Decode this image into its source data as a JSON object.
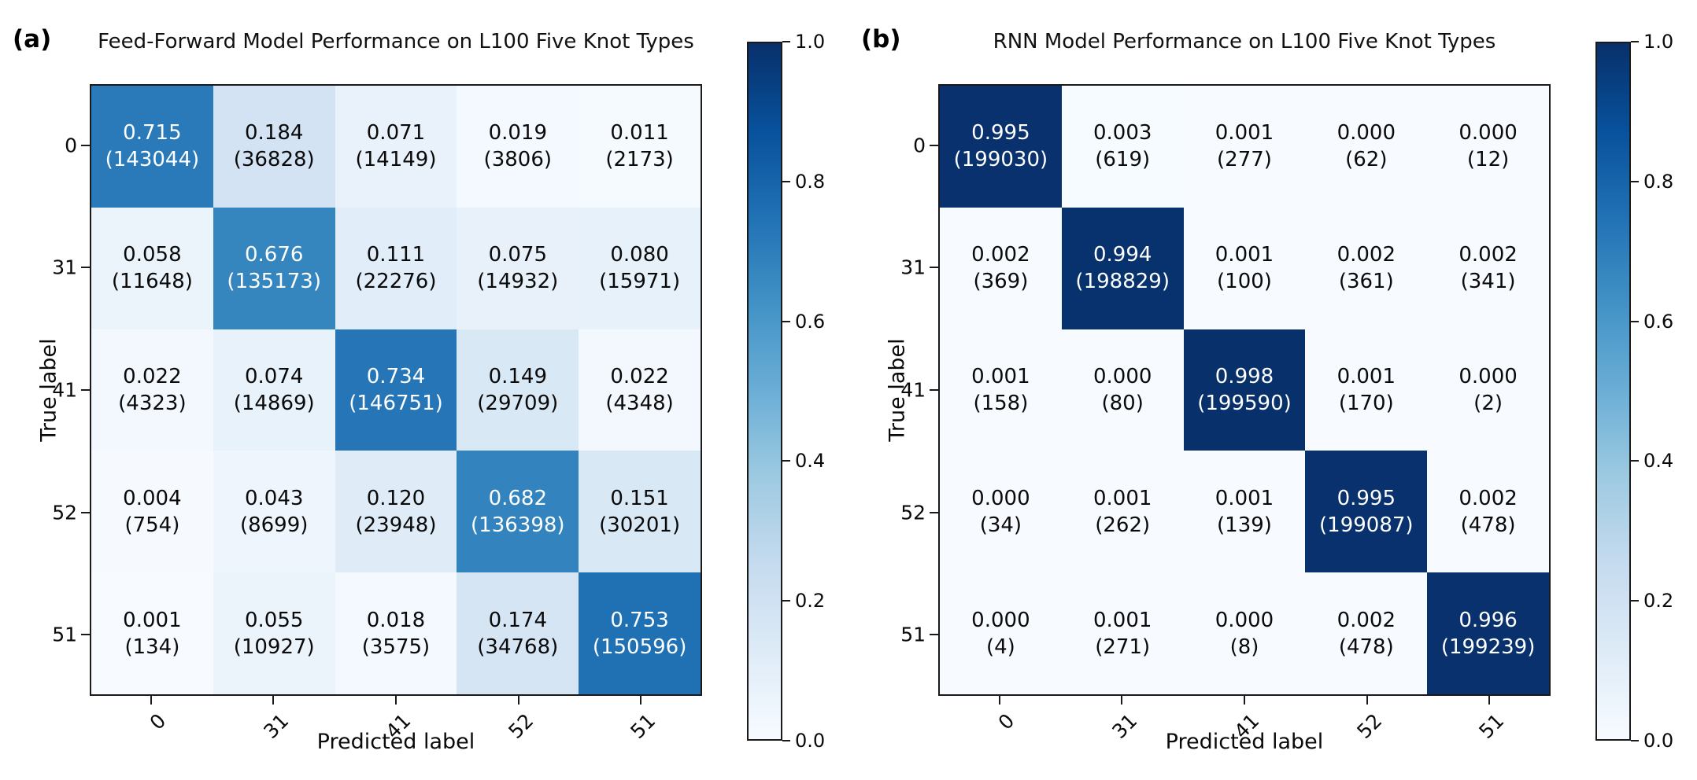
{
  "page": {
    "background": "#ffffff"
  },
  "colors": {
    "colormap_name": "Blues",
    "colormap_stops": [
      "#f7fbff",
      "#deebf7",
      "#c6dbef",
      "#9ecae1",
      "#6baed6",
      "#4292c6",
      "#2171b5",
      "#08519c",
      "#08306b"
    ],
    "diagonal_dark_blue": "#08316d",
    "diagonal_mid_blue": "#2a7ab9",
    "cell_text_dark": "#0a0a0a",
    "cell_text_light": "#ffffff",
    "spine_color": "#1a1a1a"
  },
  "chart_data": [
    {
      "type": "heatmap",
      "panel_label": "(a)",
      "title": "Feed-Forward Model Performance on L100 Five Knot Types",
      "xlabel": "Predicted label",
      "ylabel": "True label",
      "x_tick_labels": [
        "0",
        "31",
        "41",
        "52",
        "51"
      ],
      "y_tick_labels": [
        "0",
        "31",
        "41",
        "52",
        "51"
      ],
      "colormap": "Blues",
      "value_range": [
        0,
        1
      ],
      "values": [
        [
          0.715,
          0.184,
          0.071,
          0.019,
          0.011
        ],
        [
          0.058,
          0.676,
          0.111,
          0.075,
          0.08
        ],
        [
          0.022,
          0.074,
          0.734,
          0.149,
          0.022
        ],
        [
          0.004,
          0.043,
          0.12,
          0.682,
          0.151
        ],
        [
          0.001,
          0.055,
          0.018,
          0.174,
          0.753
        ]
      ],
      "counts": [
        [
          143044,
          36828,
          14149,
          3806,
          2173
        ],
        [
          11648,
          135173,
          22276,
          14932,
          15971
        ],
        [
          4323,
          14869,
          146751,
          29709,
          4348
        ],
        [
          754,
          8699,
          23948,
          136398,
          30201
        ],
        [
          134,
          10927,
          3575,
          34768,
          150596
        ]
      ],
      "colorbar_ticks": [
        "1.0",
        "0.8",
        "0.6",
        "0.4",
        "0.2",
        "0.0"
      ]
    },
    {
      "type": "heatmap",
      "panel_label": "(b)",
      "title": "RNN Model Performance on L100 Five Knot Types",
      "xlabel": "Predicted label",
      "ylabel": "True label",
      "x_tick_labels": [
        "0",
        "31",
        "41",
        "52",
        "51"
      ],
      "y_tick_labels": [
        "0",
        "31",
        "41",
        "52",
        "51"
      ],
      "colormap": "Blues",
      "value_range": [
        0,
        1
      ],
      "values": [
        [
          0.995,
          0.003,
          0.001,
          0.0,
          0.0
        ],
        [
          0.002,
          0.994,
          0.001,
          0.002,
          0.002
        ],
        [
          0.001,
          0.0,
          0.998,
          0.001,
          0.0
        ],
        [
          0.0,
          0.001,
          0.001,
          0.995,
          0.002
        ],
        [
          0.0,
          0.001,
          0.0,
          0.002,
          0.996
        ]
      ],
      "counts": [
        [
          199030,
          619,
          277,
          62,
          12
        ],
        [
          369,
          198829,
          100,
          361,
          341
        ],
        [
          158,
          80,
          199590,
          170,
          2
        ],
        [
          34,
          262,
          139,
          199087,
          478
        ],
        [
          4,
          271,
          8,
          478,
          199239
        ]
      ],
      "colorbar_ticks": [
        "1.0",
        "0.8",
        "0.6",
        "0.4",
        "0.2",
        "0.0"
      ]
    }
  ]
}
